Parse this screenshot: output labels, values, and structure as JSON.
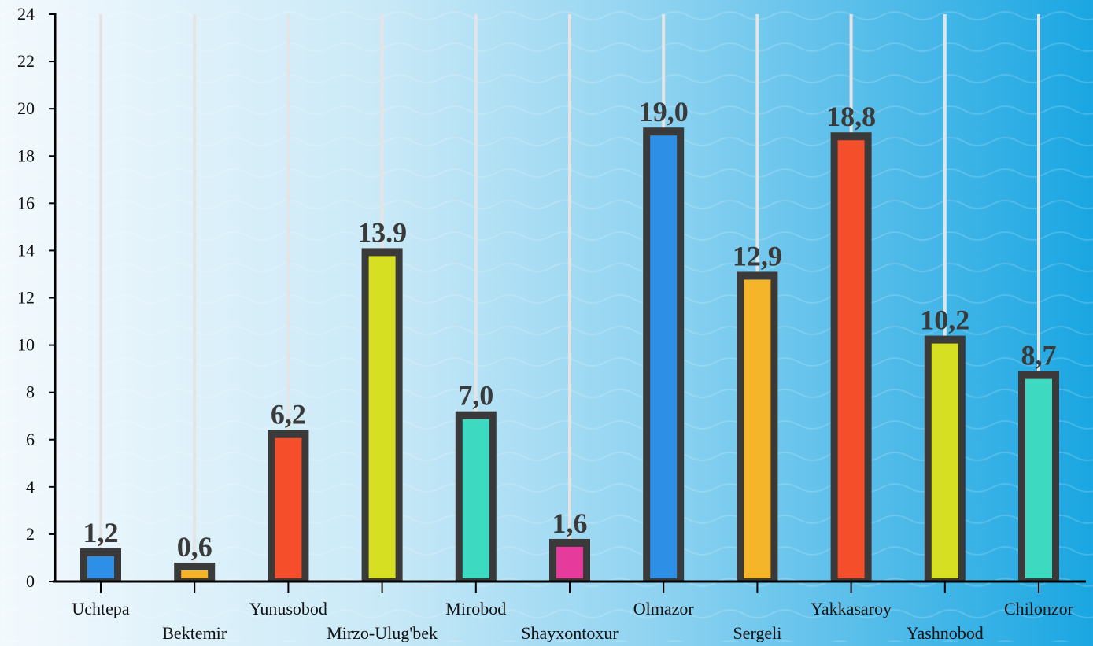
{
  "chart_data": {
    "type": "bar",
    "categories": [
      "Uchtepa",
      "Bektemir",
      "Yunusobod",
      "Mirzo-Ulug'bek",
      "Mirobod",
      "Shayxontoxur",
      "Olmazor",
      "Sergeli",
      "Yakkasaroy",
      "Yashnobod",
      "Chilonzor"
    ],
    "values": [
      1.2,
      0.6,
      6.2,
      13.9,
      7.0,
      1.6,
      19.0,
      12.9,
      18.8,
      10.2,
      8.7
    ],
    "value_labels": [
      "1,2",
      "0,6",
      "6,2",
      "13.9",
      "7,0",
      "1,6",
      "19,0",
      "12,9",
      "18,8",
      "10,2",
      "8,7"
    ],
    "bar_colors": [
      "#2e8fe6",
      "#f5b52a",
      "#f44e2a",
      "#d6df22",
      "#3dd9c1",
      "#e63a9c",
      "#2e8fe6",
      "#f5b52a",
      "#f44e2a",
      "#d6df22",
      "#3dd9c1"
    ],
    "bar_border_color": "#3a3a3a",
    "y_ticks": [
      "0",
      "2",
      "4",
      "6",
      "8",
      "10",
      "12",
      "14",
      "16",
      "18",
      "20",
      "22",
      "24"
    ],
    "ylim": [
      0,
      24
    ],
    "vertical_gridlines": true,
    "title": "",
    "xlabel": "",
    "ylabel": ""
  }
}
